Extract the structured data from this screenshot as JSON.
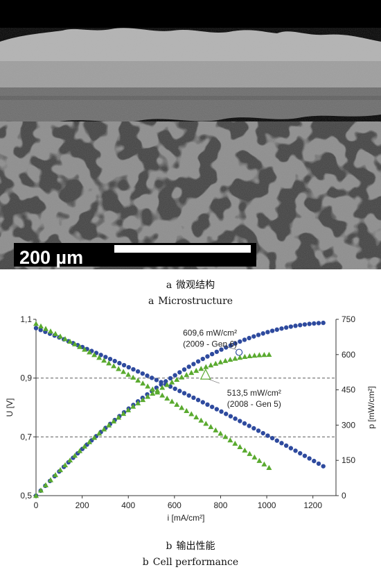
{
  "figure_a": {
    "scalebar_label": "200 µm",
    "caption_letter": "a",
    "caption_cn": "微观结构",
    "caption_en": "Microstructure"
  },
  "figure_b": {
    "caption_letter": "b",
    "caption_cn": "输出性能",
    "caption_en": "Cell performance"
  },
  "chart_data": {
    "type": "scatter",
    "xlabel": "i [mA/cm²]",
    "ylabel_left": "U [V]",
    "ylabel_right": "p [mW/cm²]",
    "xlim": [
      0,
      1300
    ],
    "ylim_left": [
      0.5,
      1.1
    ],
    "ylim_right": [
      0,
      750
    ],
    "xticks": [
      "0",
      "200",
      "400",
      "600",
      "800",
      "1000",
      "1200"
    ],
    "yticks_left": [
      "0,5",
      "0,7",
      "0,9",
      "1,1"
    ],
    "yticks_right": [
      "0",
      "150",
      "300",
      "450",
      "600",
      "750"
    ],
    "gridlines_left": [
      0.7,
      0.9
    ],
    "colors": {
      "gen6": "#2e4a9e",
      "gen5": "#5aaa2f"
    },
    "series": [
      {
        "marker": "circle",
        "color": "#2e4a9e",
        "i_max": 1245,
        "voltage": {
          "u0": 1.07,
          "u_end": 0.6
        },
        "power_peak": 735,
        "annotation": {
          "x": 880,
          "y": 609.6,
          "line1": "609,6 mW/cm²",
          "line2": "(2009 - Gen 6)"
        }
      },
      {
        "marker": "triangle",
        "color": "#5aaa2f",
        "i_max": 1010,
        "voltage": {
          "u0": 1.085,
          "u_end": 0.595
        },
        "power_peak": 600,
        "annotation": {
          "x": 735,
          "y": 513.5,
          "line1": "513,5 mW/cm²",
          "line2": "(2008 - Gen 5)"
        }
      }
    ]
  }
}
